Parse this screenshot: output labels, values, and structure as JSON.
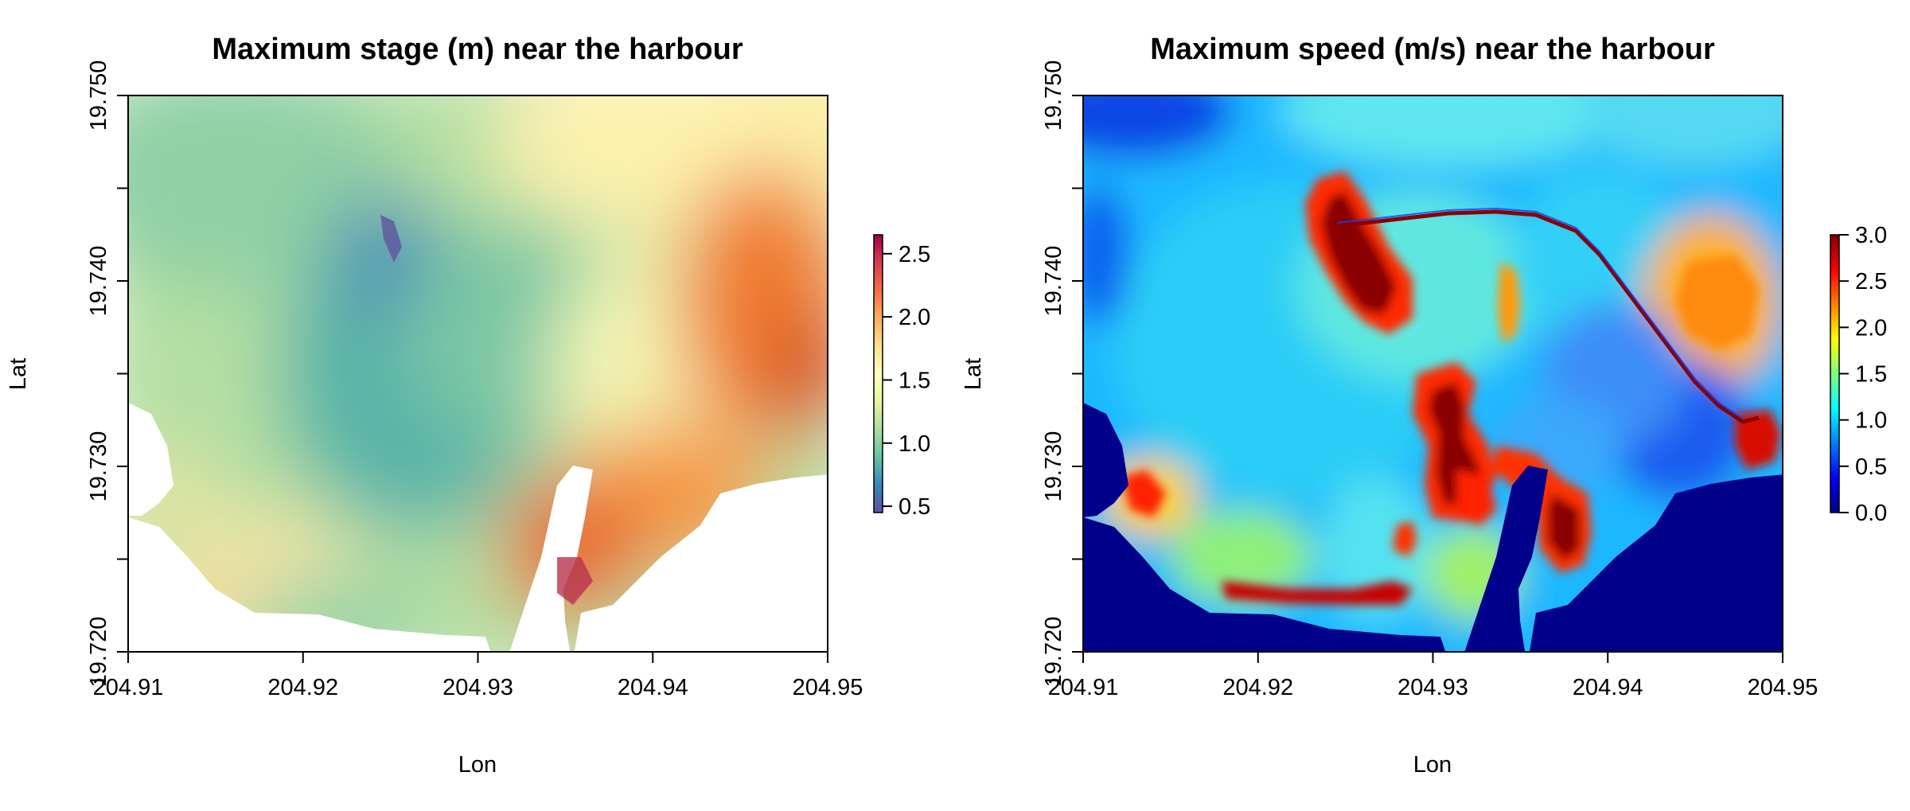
{
  "chart_data": [
    {
      "type": "heatmap",
      "title": "Maximum stage (m) near the harbour",
      "xlabel": "Lon",
      "ylabel": "Lat",
      "xlim": [
        204.91,
        204.95
      ],
      "ylim": [
        19.72,
        19.75
      ],
      "x_ticks": [
        "204.91",
        "204.92",
        "204.93",
        "204.94",
        "204.95"
      ],
      "x_tick_values": [
        204.91,
        204.92,
        204.93,
        204.94,
        204.95
      ],
      "y_ticks": [
        "19.720",
        "19.730",
        "19.740",
        "19.750"
      ],
      "y_tick_values": [
        19.72,
        19.73,
        19.74,
        19.75
      ],
      "colorbar": {
        "range": [
          0.45,
          2.65
        ],
        "ticks": [
          "0.5",
          "1.0",
          "1.5",
          "2.0",
          "2.5"
        ],
        "tick_values": [
          0.5,
          1.0,
          1.5,
          2.0,
          2.5
        ],
        "colormap": [
          "#5e4fa2",
          "#3288bd",
          "#66c2a5",
          "#abdda4",
          "#e6f598",
          "#ffffbf",
          "#fee08b",
          "#fdae61",
          "#f46d43",
          "#d53e4f",
          "#9e0142"
        ]
      },
      "field_samples": [
        {
          "lon": 204.913,
          "lat": 19.745,
          "value": 1.2
        },
        {
          "lon": 204.925,
          "lat": 19.742,
          "value": 0.6
        },
        {
          "lon": 204.922,
          "lat": 19.735,
          "value": 1.0
        },
        {
          "lon": 204.93,
          "lat": 19.74,
          "value": 1.3
        },
        {
          "lon": 204.937,
          "lat": 19.733,
          "value": 1.6
        },
        {
          "lon": 204.947,
          "lat": 19.74,
          "value": 2.1
        },
        {
          "lon": 204.948,
          "lat": 19.734,
          "value": 2.3
        },
        {
          "lon": 204.936,
          "lat": 19.726,
          "value": 2.4
        },
        {
          "lon": 204.942,
          "lat": 19.728,
          "value": 2.1
        },
        {
          "lon": 204.92,
          "lat": 19.726,
          "value": 1.6
        },
        {
          "lon": 204.918,
          "lat": 19.721,
          "value": 1.8
        },
        {
          "lon": 204.926,
          "lat": 19.722,
          "value": 1.1
        },
        {
          "lon": 204.912,
          "lat": 19.727,
          "value": 1.8
        }
      ]
    },
    {
      "type": "heatmap",
      "title": "Maximum speed (m/s) near the harbour",
      "xlabel": "Lon",
      "ylabel": "Lat",
      "xlim": [
        204.91,
        204.95
      ],
      "ylim": [
        19.72,
        19.75
      ],
      "x_ticks": [
        "204.91",
        "204.92",
        "204.93",
        "204.94",
        "204.95"
      ],
      "x_tick_values": [
        204.91,
        204.92,
        204.93,
        204.94,
        204.95
      ],
      "y_ticks": [
        "19.720",
        "19.730",
        "19.740",
        "19.750"
      ],
      "y_tick_values": [
        19.72,
        19.73,
        19.74,
        19.75
      ],
      "colorbar": {
        "range": [
          0.0,
          3.0
        ],
        "ticks": [
          "0.0",
          "0.5",
          "1.0",
          "1.5",
          "2.0",
          "2.5",
          "3.0"
        ],
        "tick_values": [
          0.0,
          0.5,
          1.0,
          1.5,
          2.0,
          2.5,
          3.0
        ],
        "colormap": [
          "#00007f",
          "#0000ff",
          "#007fff",
          "#00ffff",
          "#7fff7f",
          "#ffff00",
          "#ff7f00",
          "#ff0000",
          "#7f0000"
        ]
      },
      "field_samples": [
        {
          "lon": 204.925,
          "lat": 19.739,
          "value": 3.0
        },
        {
          "lon": 204.932,
          "lat": 19.73,
          "value": 3.0
        },
        {
          "lon": 204.939,
          "lat": 19.727,
          "value": 2.7
        },
        {
          "lon": 204.947,
          "lat": 19.738,
          "value": 2.0
        },
        {
          "lon": 204.944,
          "lat": 19.735,
          "value": 0.6
        },
        {
          "lon": 204.92,
          "lat": 19.735,
          "value": 1.3
        },
        {
          "lon": 204.93,
          "lat": 19.745,
          "value": 1.4
        },
        {
          "lon": 204.912,
          "lat": 19.748,
          "value": 0.4
        },
        {
          "lon": 204.913,
          "lat": 19.728,
          "value": 2.4
        },
        {
          "lon": 204.922,
          "lat": 19.723,
          "value": 2.6
        },
        {
          "lon": 204.934,
          "lat": 19.737,
          "value": 2.2
        },
        {
          "lon": 204.911,
          "lat": 19.725,
          "value": 0.0
        },
        {
          "lon": 204.945,
          "lat": 19.724,
          "value": 0.0
        }
      ]
    }
  ]
}
